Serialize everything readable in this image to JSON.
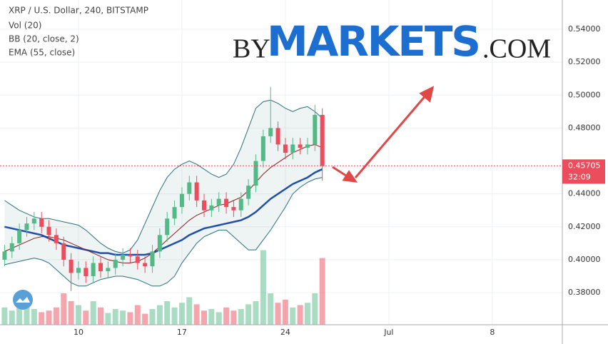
{
  "chart_data": {
    "type": "candlestick",
    "title": "XRP / U.S. Dollar, 240, BITSTAMP",
    "indicators": [
      "Vol (20)",
      "BB (20, close, 2)",
      "EMA (55, close)"
    ],
    "watermark": {
      "prefix": "BY",
      "main": "MARKETS",
      "suffix": ".COM"
    },
    "x": [
      5,
      5.5,
      6,
      6.5,
      7,
      7.5,
      8,
      8.5,
      9,
      9.5,
      10,
      10.5,
      11,
      11.5,
      12,
      12.5,
      13,
      13.5,
      14,
      14.5,
      15,
      15.5,
      16,
      16.5,
      17,
      17.5,
      18,
      18.5,
      19,
      19.5,
      20,
      20.5,
      21,
      21.5,
      22,
      22.5,
      23,
      23.5,
      24,
      24.5,
      25,
      25.5,
      26,
      26.5
    ],
    "open": [
      0.4,
      0.405,
      0.41,
      0.418,
      0.422,
      0.425,
      0.42,
      0.415,
      0.41,
      0.4,
      0.392,
      0.395,
      0.39,
      0.398,
      0.393,
      0.395,
      0.4,
      0.403,
      0.402,
      0.398,
      0.396,
      0.405,
      0.415,
      0.425,
      0.432,
      0.44,
      0.447,
      0.436,
      0.43,
      0.433,
      0.437,
      0.432,
      0.43,
      0.437,
      0.445,
      0.46,
      0.475,
      0.48,
      0.47,
      0.465,
      0.47,
      0.468,
      0.47,
      0.488
    ],
    "high": [
      0.409,
      0.414,
      0.422,
      0.426,
      0.429,
      0.429,
      0.424,
      0.419,
      0.414,
      0.404,
      0.399,
      0.399,
      0.402,
      0.402,
      0.399,
      0.404,
      0.407,
      0.407,
      0.406,
      0.402,
      0.409,
      0.419,
      0.429,
      0.436,
      0.444,
      0.451,
      0.451,
      0.44,
      0.437,
      0.441,
      0.441,
      0.436,
      0.441,
      0.449,
      0.464,
      0.479,
      0.505,
      0.484,
      0.474,
      0.474,
      0.474,
      0.474,
      0.494,
      0.492
    ],
    "low": [
      0.396,
      0.401,
      0.406,
      0.414,
      0.418,
      0.416,
      0.411,
      0.406,
      0.396,
      0.381,
      0.388,
      0.386,
      0.386,
      0.389,
      0.389,
      0.391,
      0.396,
      0.398,
      0.394,
      0.392,
      0.392,
      0.401,
      0.411,
      0.421,
      0.428,
      0.436,
      0.432,
      0.426,
      0.426,
      0.429,
      0.428,
      0.426,
      0.426,
      0.433,
      0.441,
      0.456,
      0.471,
      0.466,
      0.461,
      0.461,
      0.464,
      0.464,
      0.466,
      0.448
    ],
    "close": [
      0.405,
      0.41,
      0.418,
      0.422,
      0.425,
      0.42,
      0.415,
      0.41,
      0.4,
      0.392,
      0.395,
      0.39,
      0.398,
      0.393,
      0.395,
      0.4,
      0.403,
      0.402,
      0.398,
      0.396,
      0.405,
      0.415,
      0.425,
      0.432,
      0.44,
      0.447,
      0.436,
      0.43,
      0.433,
      0.437,
      0.432,
      0.43,
      0.437,
      0.445,
      0.46,
      0.475,
      0.48,
      0.47,
      0.465,
      0.47,
      0.468,
      0.47,
      0.488,
      0.457
    ],
    "volume": [
      22,
      18,
      30,
      25,
      20,
      16,
      18,
      22,
      40,
      30,
      25,
      18,
      30,
      22,
      15,
      20,
      18,
      16,
      25,
      14,
      20,
      25,
      30,
      22,
      28,
      35,
      26,
      18,
      20,
      16,
      22,
      18,
      20,
      26,
      30,
      95,
      40,
      28,
      32,
      22,
      25,
      28,
      40,
      85
    ],
    "series": [
      {
        "name": "EMA (55, close)",
        "color": "#1f4fa8",
        "values": [
          0.42,
          0.419,
          0.418,
          0.417,
          0.416,
          0.415,
          0.413,
          0.411,
          0.409,
          0.408,
          0.407,
          0.406,
          0.405,
          0.404,
          0.404,
          0.403,
          0.403,
          0.403,
          0.403,
          0.403,
          0.404,
          0.406,
          0.408,
          0.41,
          0.412,
          0.415,
          0.417,
          0.419,
          0.42,
          0.421,
          0.422,
          0.423,
          0.424,
          0.426,
          0.429,
          0.433,
          0.437,
          0.44,
          0.443,
          0.446,
          0.448,
          0.45,
          0.453,
          0.455
        ]
      },
      {
        "name": "BB basis",
        "color": "#8b1a1a",
        "values": [
          0.405,
          0.407,
          0.409,
          0.411,
          0.413,
          0.414,
          0.414,
          0.413,
          0.412,
          0.41,
          0.408,
          0.406,
          0.404,
          0.402,
          0.4,
          0.399,
          0.398,
          0.398,
          0.399,
          0.401,
          0.404,
          0.408,
          0.412,
          0.416,
          0.42,
          0.424,
          0.427,
          0.429,
          0.431,
          0.433,
          0.434,
          0.436,
          0.438,
          0.442,
          0.447,
          0.452,
          0.456,
          0.459,
          0.462,
          0.465,
          0.467,
          0.469,
          0.47,
          0.468
        ]
      },
      {
        "name": "BB upper",
        "color": "#2a6f78",
        "values": [
          0.436,
          0.433,
          0.43,
          0.428,
          0.426,
          0.425,
          0.425,
          0.424,
          0.423,
          0.422,
          0.421,
          0.418,
          0.414,
          0.41,
          0.407,
          0.405,
          0.404,
          0.406,
          0.412,
          0.422,
          0.432,
          0.442,
          0.45,
          0.455,
          0.458,
          0.46,
          0.458,
          0.455,
          0.452,
          0.45,
          0.452,
          0.458,
          0.468,
          0.48,
          0.492,
          0.496,
          0.497,
          0.495,
          0.492,
          0.49,
          0.492,
          0.493,
          0.49,
          0.486
        ]
      },
      {
        "name": "BB lower",
        "color": "#2a6f78",
        "values": [
          0.397,
          0.398,
          0.399,
          0.4,
          0.401,
          0.4,
          0.398,
          0.394,
          0.39,
          0.386,
          0.384,
          0.384,
          0.386,
          0.388,
          0.389,
          0.39,
          0.39,
          0.389,
          0.388,
          0.386,
          0.384,
          0.384,
          0.386,
          0.39,
          0.398,
          0.404,
          0.41,
          0.414,
          0.416,
          0.418,
          0.418,
          0.414,
          0.41,
          0.406,
          0.406,
          0.412,
          0.418,
          0.425,
          0.432,
          0.44,
          0.444,
          0.447,
          0.449,
          0.45
        ]
      }
    ],
    "up_color": "#53b987",
    "down_color": "#eb4d5c",
    "last_price": 0.45705,
    "countdown": "32:09",
    "xlim": [
      4.69,
      42.74
    ],
    "xticks": [
      10,
      17,
      24,
      {
        "value": 31,
        "label": "Jul"
      },
      {
        "value": 38,
        "label": "8"
      }
    ],
    "ylim": [
      0.3605,
      0.5578
    ],
    "yticks": [
      {
        "value": 0.38,
        "label": "0.38000"
      },
      {
        "value": 0.4,
        "label": "0.40000"
      },
      {
        "value": 0.42,
        "label": "0.42000"
      },
      {
        "value": 0.44,
        "label": "0.44000"
      },
      {
        "value": 0.48,
        "label": "0.48000"
      },
      {
        "value": 0.5,
        "label": "0.50000"
      },
      {
        "value": 0.52,
        "label": "0.52000"
      },
      {
        "value": 0.54,
        "label": "0.54000"
      }
    ],
    "grid": true
  }
}
